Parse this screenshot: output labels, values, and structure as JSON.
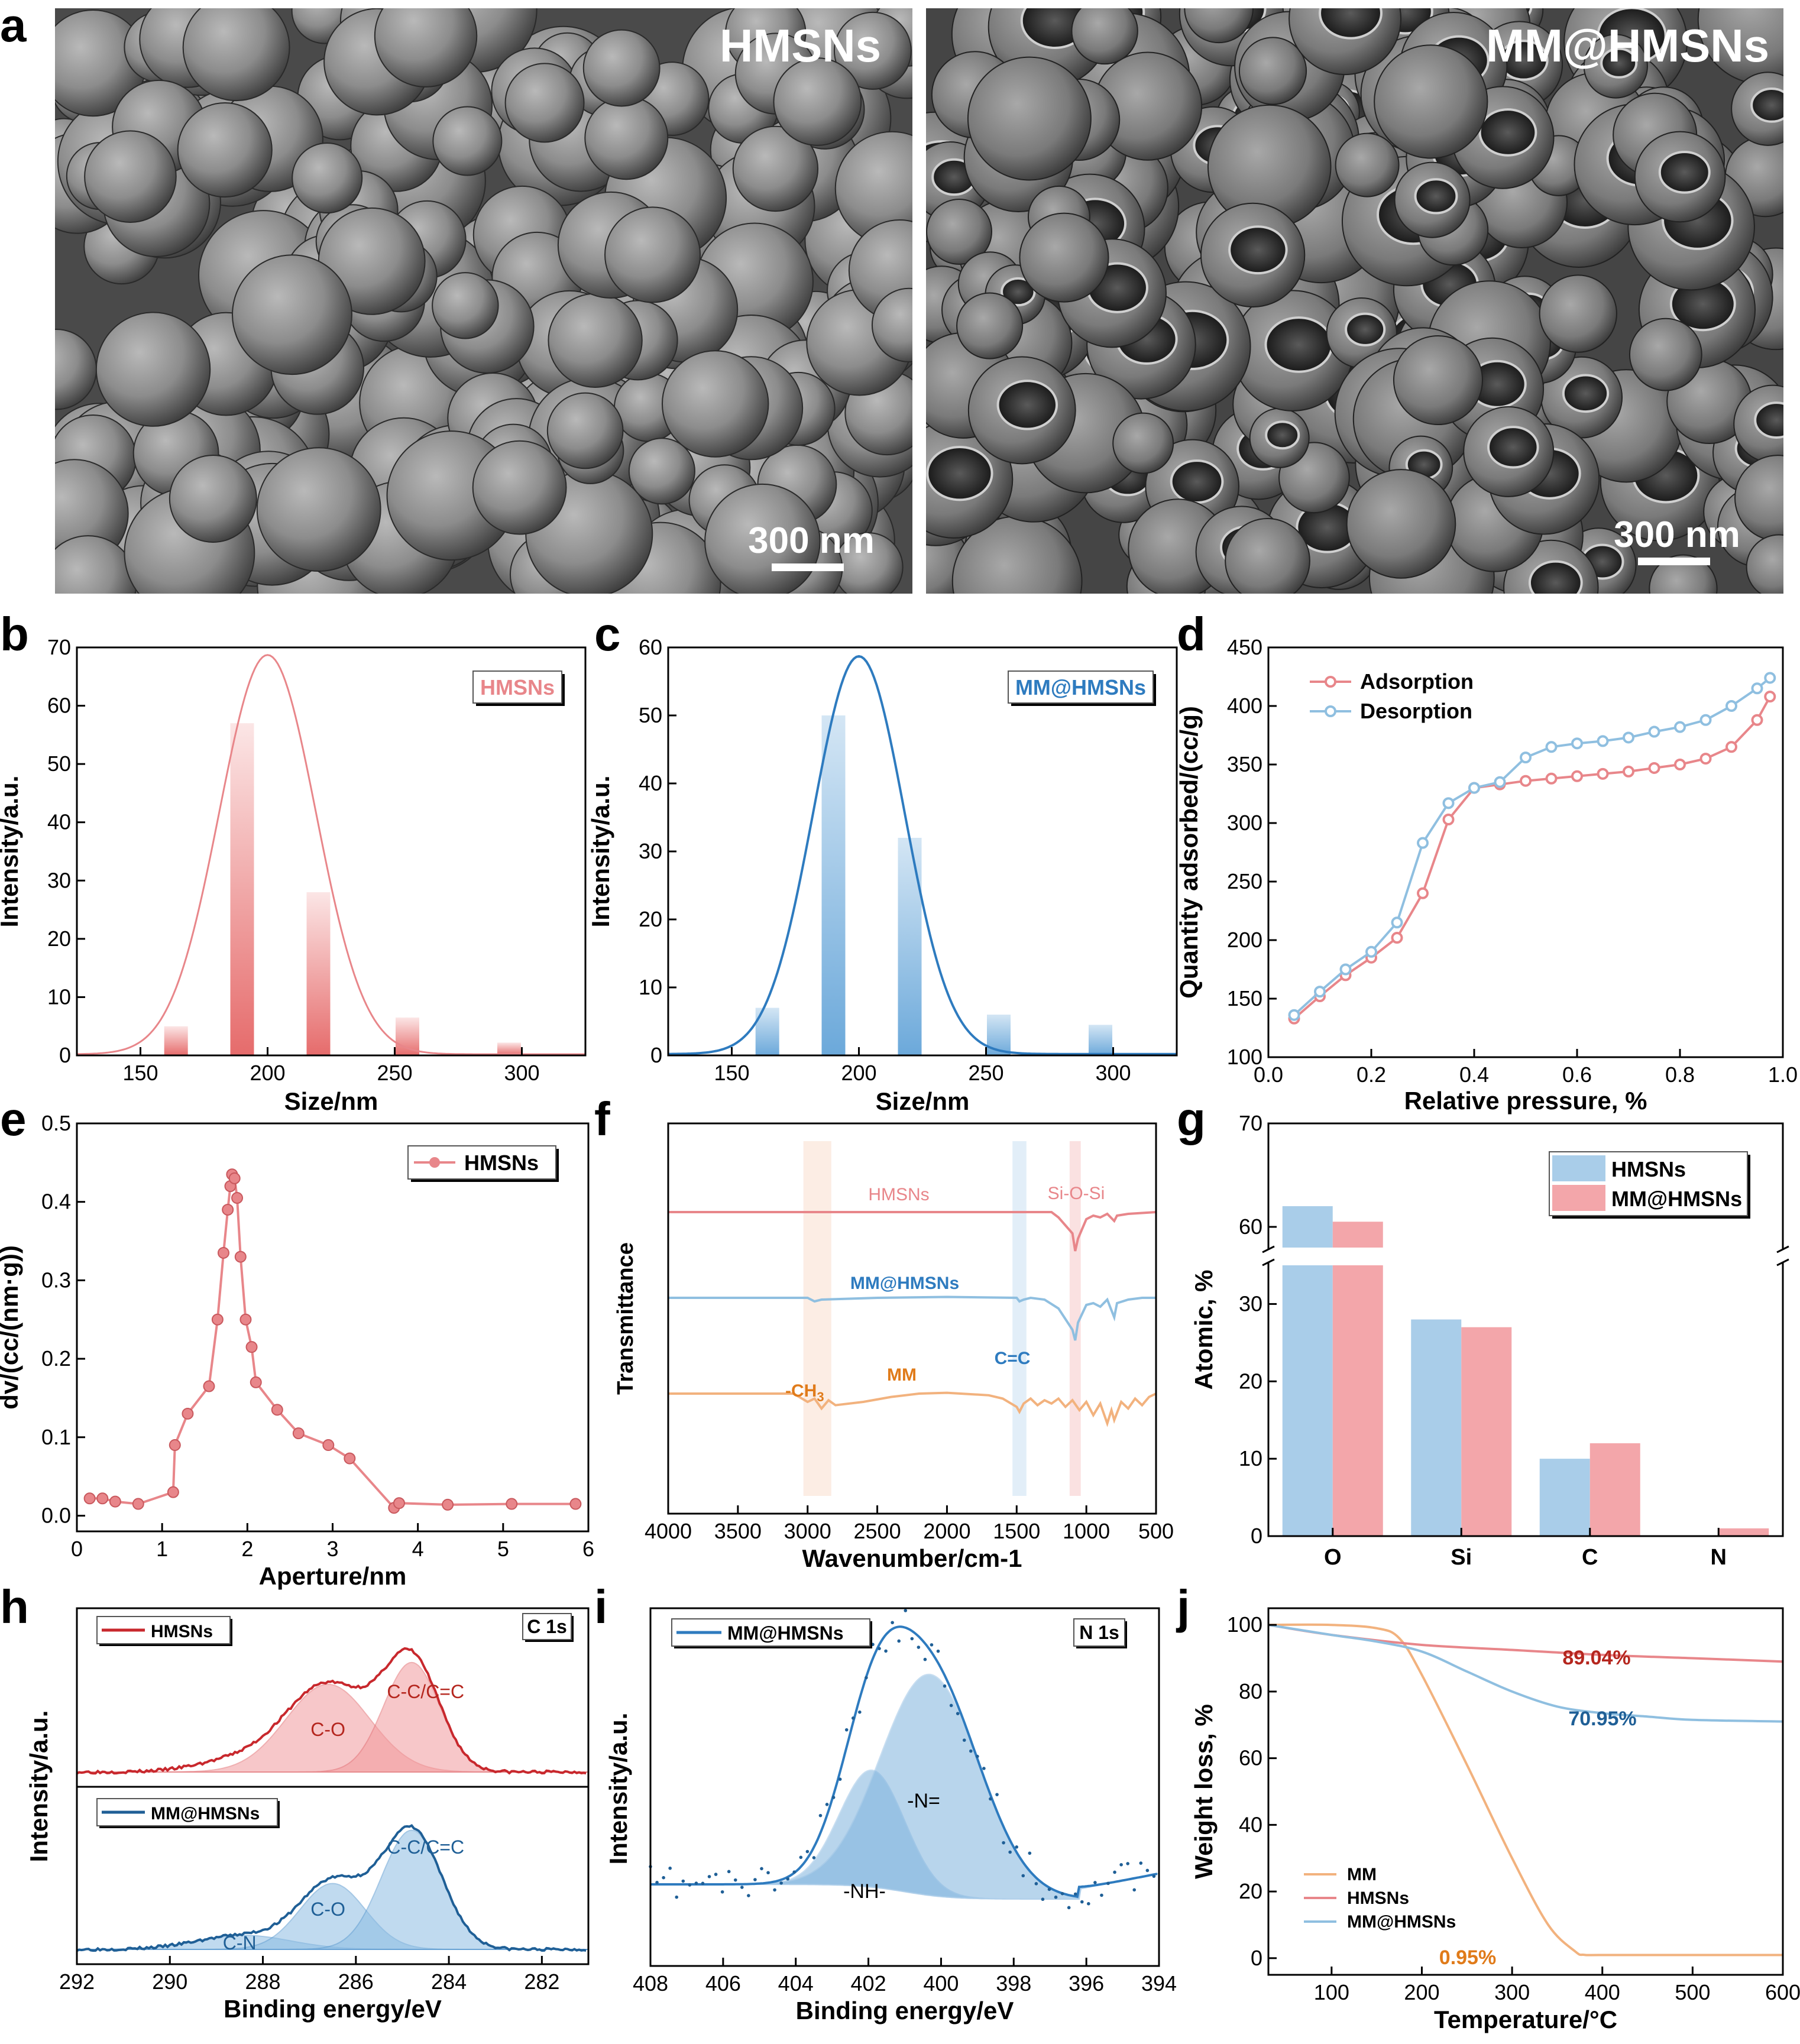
{
  "panel_letters": {
    "a": "a",
    "b": "b",
    "c": "c",
    "d": "d",
    "e": "e",
    "f": "f",
    "g": "g",
    "h": "h",
    "i": "i",
    "j": "j"
  },
  "panel_a": {
    "left": {
      "label": "HMSNs",
      "scale_bar": "300 nm"
    },
    "right": {
      "label": "MM@HMSNs",
      "scale_bar": "300 nm"
    }
  },
  "colors": {
    "red": "#e8868a",
    "red_dark": "#c0392b",
    "blue": "#2e7bbf",
    "blue_light": "#8fbfe0",
    "orange": "#f2b27e",
    "orange_dark": "#e07b1a",
    "red_label": "#b5261e",
    "blue_label": "#1f5f96"
  },
  "chart_data": [
    {
      "id": "b",
      "type": "bar",
      "title": "",
      "legend": "HMSNs",
      "xlabel": "Size/nm",
      "ylabel": "Intensity/a.u.",
      "xlim": [
        125,
        325
      ],
      "ylim": [
        0,
        70
      ],
      "xticks": [
        "150",
        "200",
        "250",
        "300"
      ],
      "xtick_values": [
        150,
        200,
        250,
        300
      ],
      "yticks": [
        "0",
        "10",
        "20",
        "30",
        "40",
        "50",
        "60",
        "70"
      ],
      "ytick_values": [
        0,
        10,
        20,
        30,
        40,
        50,
        60,
        70
      ],
      "categories": [
        164,
        190,
        220,
        255,
        295
      ],
      "values": [
        5,
        57,
        28,
        6.5,
        2.2
      ],
      "fit": {
        "type": "gaussian",
        "peak": 68.5,
        "center": 200,
        "sigma": 19
      }
    },
    {
      "id": "c",
      "type": "bar",
      "title": "",
      "legend": "MM@HMSNs",
      "xlabel": "Size/nm",
      "ylabel": "Intensity/a.u.",
      "xlim": [
        125,
        325
      ],
      "ylim": [
        0,
        60
      ],
      "xticks": [
        "150",
        "200",
        "250",
        "300"
      ],
      "xtick_values": [
        150,
        200,
        250,
        300
      ],
      "yticks": [
        "0",
        "10",
        "20",
        "30",
        "40",
        "50",
        "60"
      ],
      "ytick_values": [
        0,
        10,
        20,
        30,
        40,
        50,
        60
      ],
      "categories": [
        164,
        190,
        220,
        255,
        295
      ],
      "values": [
        7,
        50,
        32,
        6,
        4.5
      ],
      "fit": {
        "type": "gaussian",
        "peak": 58.5,
        "center": 200,
        "sigma": 18
      }
    },
    {
      "id": "d",
      "type": "line",
      "xlabel": "Relative pressure, %",
      "ylabel": "Quantity adsorbed/(cc/g)",
      "xlim": [
        0,
        1
      ],
      "ylim": [
        100,
        450
      ],
      "xticks": [
        "0.0",
        "0.2",
        "0.4",
        "0.6",
        "0.8",
        "1.0"
      ],
      "xtick_values": [
        0,
        0.2,
        0.4,
        0.6,
        0.8,
        1.0
      ],
      "yticks": [
        "100",
        "150",
        "200",
        "250",
        "300",
        "350",
        "400",
        "450"
      ],
      "ytick_values": [
        100,
        150,
        200,
        250,
        300,
        350,
        400,
        450
      ],
      "series": [
        {
          "name": "Adsorption",
          "x": [
            0.05,
            0.1,
            0.15,
            0.2,
            0.25,
            0.3,
            0.35,
            0.4,
            0.45,
            0.5,
            0.55,
            0.6,
            0.65,
            0.7,
            0.75,
            0.8,
            0.85,
            0.9,
            0.95,
            0.975
          ],
          "y": [
            133,
            152,
            170,
            185,
            202,
            240,
            303,
            330,
            333,
            336,
            338,
            340,
            342,
            344,
            347,
            350,
            355,
            365,
            388,
            408
          ]
        },
        {
          "name": "Desorption",
          "x": [
            0.05,
            0.1,
            0.15,
            0.2,
            0.25,
            0.3,
            0.35,
            0.4,
            0.45,
            0.5,
            0.55,
            0.6,
            0.65,
            0.7,
            0.75,
            0.8,
            0.85,
            0.9,
            0.95,
            0.975
          ],
          "y": [
            136,
            156,
            175,
            190,
            215,
            283,
            317,
            330,
            335,
            356,
            365,
            368,
            370,
            373,
            378,
            382,
            388,
            400,
            415,
            424
          ]
        }
      ]
    },
    {
      "id": "e",
      "type": "line",
      "legend": "HMSNs",
      "xlabel": "Aperture/nm",
      "ylabel": "dv/(cc/(nm·g))",
      "xlim": [
        0,
        6
      ],
      "ylim": [
        -0.02,
        0.5
      ],
      "xticks": [
        "0",
        "1",
        "2",
        "3",
        "4",
        "5",
        "6"
      ],
      "xtick_values": [
        0,
        1,
        2,
        3,
        4,
        5,
        6
      ],
      "yticks": [
        "0.0",
        "0.1",
        "0.2",
        "0.3",
        "0.4",
        "0.5"
      ],
      "ytick_values": [
        0,
        0.1,
        0.2,
        0.3,
        0.4,
        0.5
      ],
      "x": [
        0.15,
        0.3,
        0.45,
        0.72,
        1.13,
        1.15,
        1.3,
        1.55,
        1.65,
        1.72,
        1.77,
        1.8,
        1.82,
        1.85,
        1.88,
        1.92,
        1.98,
        2.05,
        2.1,
        2.35,
        2.6,
        2.95,
        3.2,
        3.72,
        3.78,
        4.35,
        5.1,
        5.85
      ],
      "y": [
        0.022,
        0.022,
        0.018,
        0.015,
        0.03,
        0.09,
        0.13,
        0.165,
        0.25,
        0.335,
        0.39,
        0.42,
        0.435,
        0.43,
        0.405,
        0.33,
        0.25,
        0.215,
        0.17,
        0.135,
        0.105,
        0.09,
        0.073,
        0.01,
        0.016,
        0.014,
        0.015,
        0.015
      ]
    },
    {
      "id": "f",
      "type": "line",
      "xlabel": "Wavenumber/cm-1",
      "ylabel": "Transmittance",
      "xlim": [
        4000,
        500
      ],
      "xticks": [
        "4000",
        "3500",
        "3000",
        "2500",
        "2000",
        "1500",
        "1000",
        "500"
      ],
      "xtick_values": [
        4000,
        3500,
        3000,
        2500,
        2000,
        1500,
        1000,
        500
      ],
      "series": [
        {
          "name": "HMSNs",
          "x": [
            4000,
            3000,
            2000,
            1350,
            1250,
            1200,
            1100,
            1080,
            1060,
            1000,
            950,
            900,
            850,
            800,
            780,
            700,
            600,
            500
          ],
          "y": [
            0,
            0,
            0,
            0,
            0,
            -0.3,
            -1.2,
            -2.2,
            -1.5,
            -0.4,
            -0.2,
            -0.3,
            -0.1,
            -0.5,
            -0.2,
            -0.1,
            -0.05,
            0
          ]
        },
        {
          "name": "MM@HMSNs",
          "x": [
            4000,
            3000,
            2950,
            2900,
            2500,
            2000,
            1500,
            1480,
            1450,
            1400,
            1300,
            1200,
            1100,
            1080,
            1060,
            1000,
            950,
            900,
            850,
            800,
            780,
            700,
            600,
            500
          ],
          "y": [
            0,
            0,
            -0.2,
            -0.1,
            0,
            0.05,
            0,
            -0.2,
            -0.1,
            0,
            -0.1,
            -0.6,
            -1.8,
            -2.4,
            -1.4,
            -0.4,
            -0.3,
            -0.5,
            -0.1,
            -1.1,
            -0.3,
            -0.1,
            0,
            0
          ]
        },
        {
          "name": "MM",
          "x": [
            4000,
            3100,
            3000,
            2950,
            2900,
            2850,
            2800,
            2600,
            2400,
            2200,
            2000,
            1700,
            1600,
            1500,
            1480,
            1450,
            1400,
            1350,
            1300,
            1250,
            1200,
            1150,
            1100,
            1050,
            1000,
            950,
            900,
            850,
            820,
            800,
            750,
            700,
            650,
            600,
            550,
            500
          ],
          "y": [
            0,
            0,
            -0.5,
            -0.3,
            -0.9,
            -0.4,
            -0.7,
            -0.5,
            -0.2,
            0,
            0.05,
            -0.1,
            -0.3,
            -0.8,
            -1.1,
            -0.6,
            -0.3,
            -0.7,
            -0.4,
            -0.6,
            -0.3,
            -0.8,
            -0.4,
            -1.0,
            -0.5,
            -1.3,
            -0.6,
            -1.8,
            -1.0,
            -1.6,
            -0.5,
            -0.9,
            -0.3,
            -0.7,
            -0.2,
            0
          ]
        }
      ],
      "labels": {
        "hmsns": "HMSNs",
        "mmhmsns": "MM@HMSNs",
        "mm": "MM",
        "sios": "Si-O-Si",
        "cc": "C=C",
        "ch3": "-CH",
        "ch3_sub": "3"
      },
      "bands": [
        [
          3030,
          2830
        ],
        [
          1530,
          1430
        ],
        [
          1120,
          1040
        ]
      ]
    },
    {
      "id": "g",
      "type": "bar",
      "xlabel": "",
      "ylabel": "Atomic, %",
      "categories": [
        "O",
        "Si",
        "C",
        "N"
      ],
      "series": [
        {
          "name": "HMSNs",
          "values": [
            62,
            28,
            10,
            0
          ]
        },
        {
          "name": "MM@HMSNs",
          "values": [
            60.5,
            27,
            12,
            1
          ]
        }
      ],
      "yticks": [
        "0",
        "10",
        "20",
        "30",
        "60",
        "70"
      ],
      "ytick_values": [
        0,
        10,
        20,
        30,
        60,
        70
      ],
      "axis_break": [
        35,
        58
      ]
    },
    {
      "id": "h",
      "type": "area",
      "tag": "C 1s",
      "xlabel": "Binding energy/eV",
      "ylabel": "Intensity/a.u.",
      "xlim": [
        292,
        281
      ],
      "xticks": [
        "292",
        "290",
        "288",
        "286",
        "284",
        "282"
      ],
      "xtick_values": [
        292,
        290,
        288,
        286,
        284,
        282
      ],
      "top": {
        "legend": "HMSNs",
        "peaks": [
          {
            "label": "C-O",
            "center": 286.6,
            "height": 0.6,
            "width": 0.9
          },
          {
            "label": "C-C/C=C",
            "center": 284.8,
            "height": 0.75,
            "width": 0.6
          }
        ],
        "shoulder": {
          "center": 288.5,
          "height": 0.08,
          "width": 0.9
        }
      },
      "bottom": {
        "legend": "MM@HMSNs",
        "peaks": [
          {
            "label": "C-N",
            "center": 288.4,
            "height": 0.1,
            "width": 1.0
          },
          {
            "label": "C-O",
            "center": 286.5,
            "height": 0.47,
            "width": 0.7
          },
          {
            "label": "C-C/C=C",
            "center": 284.8,
            "height": 0.85,
            "width": 0.65
          }
        ]
      }
    },
    {
      "id": "i",
      "type": "area",
      "tag": "N 1s",
      "legend": "MM@HMSNs",
      "xlabel": "Binding energy/eV",
      "ylabel": "Intensity/a.u.",
      "xlim": [
        408,
        394
      ],
      "xticks": [
        "408",
        "406",
        "404",
        "402",
        "400",
        "398",
        "396",
        "394"
      ],
      "xtick_values": [
        408,
        406,
        404,
        402,
        400,
        398,
        396,
        394
      ],
      "peaks": [
        {
          "label": "-NH-",
          "center": 401.9,
          "height": 0.45,
          "width": 0.9
        },
        {
          "label": "-N=",
          "center": 400.3,
          "height": 0.85,
          "width": 1.35
        }
      ]
    },
    {
      "id": "j",
      "type": "line",
      "xlabel": "Temperature/°C",
      "ylabel": "Weight loss, %",
      "xlim": [
        30,
        600
      ],
      "ylim": [
        -5,
        105
      ],
      "xticks": [
        "100",
        "200",
        "300",
        "400",
        "500",
        "600"
      ],
      "xtick_values": [
        100,
        200,
        300,
        400,
        500,
        600
      ],
      "yticks": [
        "0",
        "20",
        "40",
        "60",
        "80",
        "100"
      ],
      "ytick_values": [
        0,
        20,
        40,
        60,
        80,
        100
      ],
      "series": [
        {
          "name": "MM",
          "x": [
            30,
            100,
            150,
            175,
            200,
            250,
            300,
            340,
            370,
            380,
            400,
            500,
            600
          ],
          "y": [
            100,
            100,
            99,
            96,
            85,
            58,
            30,
            10,
            2,
            1,
            0.95,
            0.95,
            0.95
          ]
        },
        {
          "name": "HMSNs",
          "x": [
            30,
            100,
            200,
            300,
            400,
            500,
            600
          ],
          "y": [
            100,
            97,
            94,
            92.5,
            91,
            90,
            89
          ]
        },
        {
          "name": "MM@HMSNs",
          "x": [
            30,
            100,
            150,
            200,
            250,
            300,
            350,
            400,
            450,
            500,
            600
          ],
          "y": [
            100,
            97,
            95,
            92,
            86,
            80,
            75.5,
            73.5,
            72.5,
            71.5,
            71
          ]
        }
      ],
      "annotations": {
        "hmsns": "89.04%",
        "mmhmsns": "70.95%",
        "mm": "0.95%"
      }
    }
  ]
}
